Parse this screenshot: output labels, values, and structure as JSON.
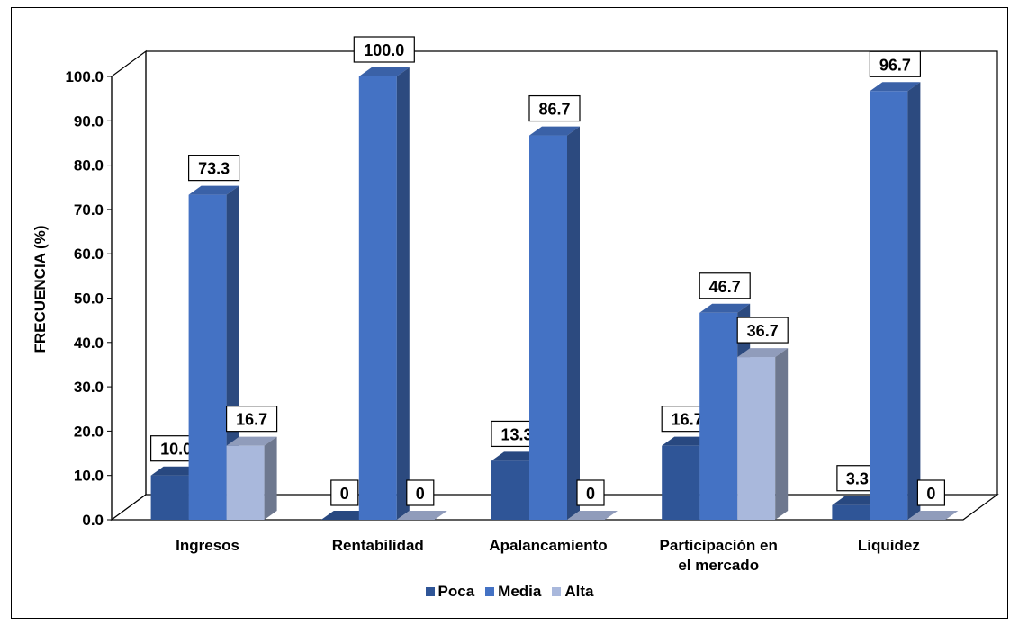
{
  "chart_data": {
    "type": "bar",
    "ylabel": "FRECUENCIA (%)",
    "xlabel": "",
    "ylim": [
      0,
      100
    ],
    "yticks": [
      "0.0",
      "10.0",
      "20.0",
      "30.0",
      "40.0",
      "50.0",
      "60.0",
      "70.0",
      "80.0",
      "90.0",
      "100.0"
    ],
    "categories": [
      "Ingresos",
      "Rentabilidad",
      "Apalancamiento",
      "Participación en el mercado",
      "Liquidez"
    ],
    "category_lines": [
      [
        "Ingresos"
      ],
      [
        "Rentabilidad"
      ],
      [
        "Apalancamiento"
      ],
      [
        "Participación en",
        "el mercado"
      ],
      [
        "Liquidez"
      ]
    ],
    "series": [
      {
        "name": "Poca",
        "values": [
          10.0,
          0,
          13.3,
          16.7,
          3.3
        ],
        "labels": [
          "10.0",
          "0",
          "13.3",
          "16.7",
          "3.3"
        ],
        "color": "#2f5597"
      },
      {
        "name": "Media",
        "values": [
          73.3,
          100.0,
          86.7,
          46.7,
          96.7
        ],
        "labels": [
          "73.3",
          "100.0",
          "86.7",
          "46.7",
          "96.7"
        ],
        "color": "#4472c4"
      },
      {
        "name": "Alta",
        "values": [
          16.7,
          0,
          0,
          36.7,
          0
        ],
        "labels": [
          "16.7",
          "0",
          "0",
          "36.7",
          "0"
        ],
        "color": "#a9b8dc"
      }
    ],
    "legend_position": "bottom",
    "grid": false,
    "style": "3d-column"
  }
}
